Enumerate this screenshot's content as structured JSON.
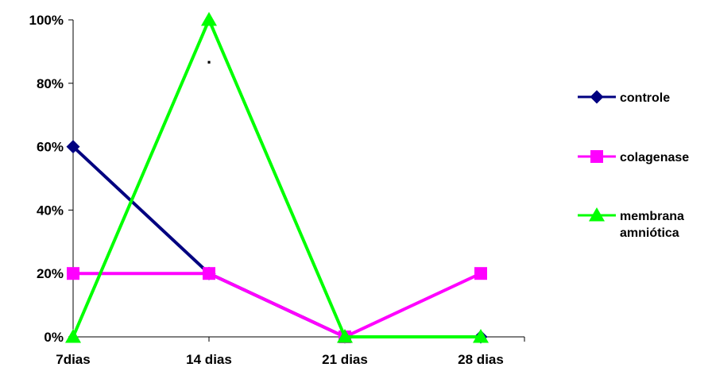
{
  "chart_data": {
    "type": "line",
    "categories": [
      "7dias",
      "14 dias",
      "21 dias",
      "28 dias"
    ],
    "y_ticks": [
      "0%",
      "20%",
      "40%",
      "60%",
      "80%",
      "100%"
    ],
    "ylim": [
      0,
      100
    ],
    "grid": false,
    "legend_position": "right",
    "series": [
      {
        "name": "controle",
        "values": [
          60,
          20,
          0,
          0
        ],
        "color": "#000080",
        "marker": "diamond"
      },
      {
        "name": "colagenase",
        "values": [
          20,
          20,
          0,
          20
        ],
        "color": "#FF00FF",
        "marker": "square"
      },
      {
        "name": "membrana amniótica",
        "name_lines": [
          "membrana",
          "amniótica"
        ],
        "values": [
          0,
          100,
          0,
          0
        ],
        "color": "#00FF00",
        "marker": "triangle"
      }
    ],
    "annotations": [
      "."
    ]
  }
}
